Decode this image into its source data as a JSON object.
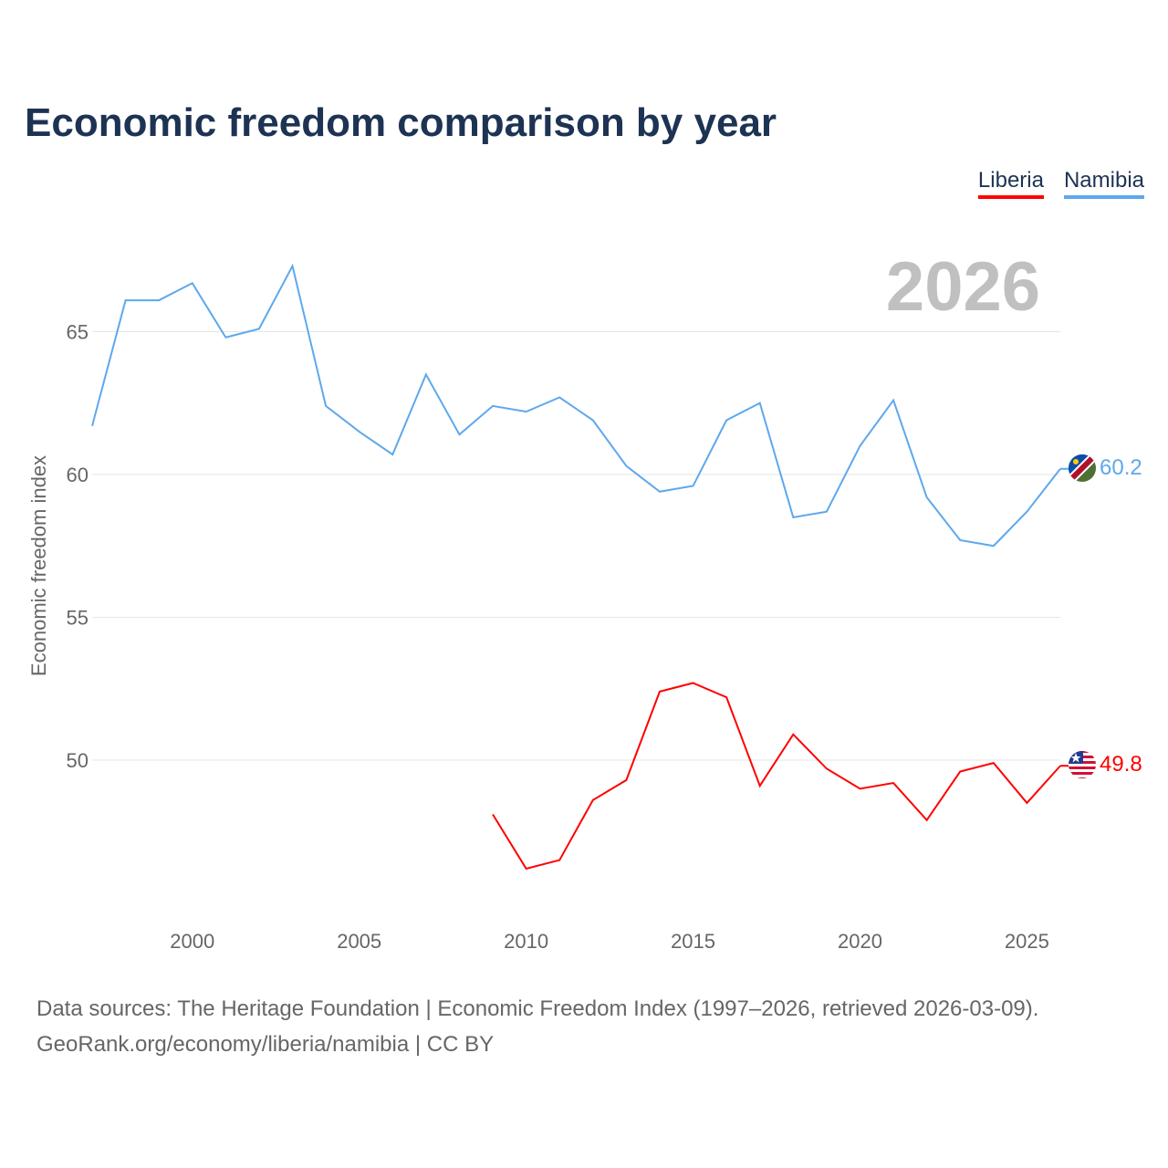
{
  "title": "Economic freedom comparison by year",
  "footer": {
    "line1": "Data sources: The Heritage Foundation | Economic Freedom Index (1997–2026, retrieved 2026-03-09).",
    "line2": "GeoRank.org/economy/liberia/namibia | CC BY"
  },
  "chart_data": {
    "type": "line",
    "title": "Economic freedom comparison by year",
    "ylabel": "Economic freedom index",
    "xlabel": "",
    "year_label": "2026",
    "xlim": [
      1997,
      2026
    ],
    "ylim": [
      45.5,
      68
    ],
    "x_ticks": [
      2000,
      2005,
      2010,
      2015,
      2020,
      2025
    ],
    "y_ticks": [
      50,
      55,
      60,
      65
    ],
    "grid": true,
    "legend_position": "top-right",
    "series": [
      {
        "name": "Liberia",
        "color": "#ff0000",
        "end_label": "49.8",
        "x": [
          2009,
          2010,
          2011,
          2012,
          2013,
          2014,
          2015,
          2016,
          2017,
          2018,
          2019,
          2020,
          2021,
          2022,
          2023,
          2024,
          2025,
          2026
        ],
        "values": [
          48.1,
          46.2,
          46.5,
          48.6,
          49.3,
          52.4,
          52.7,
          52.2,
          49.1,
          50.9,
          49.7,
          49.0,
          49.2,
          47.9,
          49.6,
          49.9,
          48.5,
          49.8
        ]
      },
      {
        "name": "Namibia",
        "color": "#5ea8ec",
        "end_label": "60.2",
        "x": [
          1997,
          1998,
          1999,
          2000,
          2001,
          2002,
          2003,
          2004,
          2005,
          2006,
          2007,
          2008,
          2009,
          2010,
          2011,
          2012,
          2013,
          2014,
          2015,
          2016,
          2017,
          2018,
          2019,
          2020,
          2021,
          2022,
          2023,
          2024,
          2025,
          2026
        ],
        "values": [
          61.7,
          66.1,
          66.1,
          66.7,
          64.8,
          65.1,
          67.3,
          62.4,
          61.5,
          60.7,
          63.5,
          61.4,
          62.4,
          62.2,
          62.7,
          61.9,
          60.3,
          59.4,
          59.6,
          61.9,
          62.5,
          58.5,
          58.7,
          61.0,
          62.6,
          59.2,
          57.7,
          57.5,
          58.7,
          60.2
        ]
      }
    ]
  }
}
